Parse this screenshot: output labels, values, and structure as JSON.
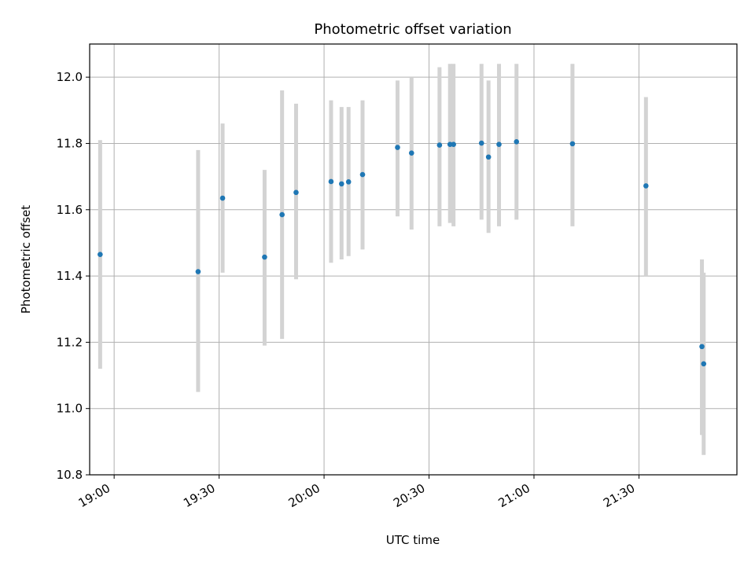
{
  "chart_data": {
    "type": "scatter",
    "title": "Photometric offset variation",
    "xlabel": "UTC time",
    "ylabel": "Photometric offset",
    "x_unit": "minutes after 19:00 UTC",
    "xlim": [
      "18:53",
      "21:58"
    ],
    "ylim": [
      10.8,
      12.1
    ],
    "x_ticks": [
      "19:00",
      "19:30",
      "20:00",
      "20:30",
      "21:00",
      "21:30"
    ],
    "y_ticks": [
      "10.8",
      "11.0",
      "11.2",
      "11.4",
      "11.6",
      "11.8",
      "12.0"
    ],
    "grid": true,
    "colors": {
      "point": "#1f77b4",
      "errorbar": "#d3d3d3",
      "grid": "#b0b0b0"
    },
    "points": [
      {
        "t": "18:56",
        "y": 11.465,
        "lo": 11.12,
        "hi": 11.81
      },
      {
        "t": "19:24",
        "y": 11.413,
        "lo": 11.05,
        "hi": 11.78
      },
      {
        "t": "19:31",
        "y": 11.635,
        "lo": 11.41,
        "hi": 11.86
      },
      {
        "t": "19:43",
        "y": 11.457,
        "lo": 11.19,
        "hi": 11.72
      },
      {
        "t": "19:48",
        "y": 11.585,
        "lo": 11.21,
        "hi": 11.96
      },
      {
        "t": "19:52",
        "y": 11.652,
        "lo": 11.39,
        "hi": 11.92
      },
      {
        "t": "20:02",
        "y": 11.685,
        "lo": 11.44,
        "hi": 11.93
      },
      {
        "t": "20:05",
        "y": 11.678,
        "lo": 11.45,
        "hi": 11.91
      },
      {
        "t": "20:07",
        "y": 11.684,
        "lo": 11.46,
        "hi": 11.91
      },
      {
        "t": "20:11",
        "y": 11.706,
        "lo": 11.48,
        "hi": 11.93
      },
      {
        "t": "20:21",
        "y": 11.788,
        "lo": 11.58,
        "hi": 11.99
      },
      {
        "t": "20:25",
        "y": 11.771,
        "lo": 11.54,
        "hi": 12.0
      },
      {
        "t": "20:33",
        "y": 11.795,
        "lo": 11.55,
        "hi": 12.03
      },
      {
        "t": "20:36",
        "y": 11.797,
        "lo": 11.56,
        "hi": 12.04
      },
      {
        "t": "20:37",
        "y": 11.797,
        "lo": 11.55,
        "hi": 12.04
      },
      {
        "t": "20:45",
        "y": 11.801,
        "lo": 11.57,
        "hi": 12.04
      },
      {
        "t": "20:47",
        "y": 11.759,
        "lo": 11.53,
        "hi": 11.99
      },
      {
        "t": "20:50",
        "y": 11.797,
        "lo": 11.55,
        "hi": 12.04
      },
      {
        "t": "20:55",
        "y": 11.805,
        "lo": 11.57,
        "hi": 12.04
      },
      {
        "t": "21:11",
        "y": 11.799,
        "lo": 11.55,
        "hi": 12.04
      },
      {
        "t": "21:32",
        "y": 11.672,
        "lo": 11.4,
        "hi": 11.94
      },
      {
        "t": "21:48",
        "y": 11.187,
        "lo": 10.92,
        "hi": 11.45
      },
      {
        "t": "21:48.5",
        "y": 11.135,
        "lo": 10.86,
        "hi": 11.41
      }
    ]
  }
}
